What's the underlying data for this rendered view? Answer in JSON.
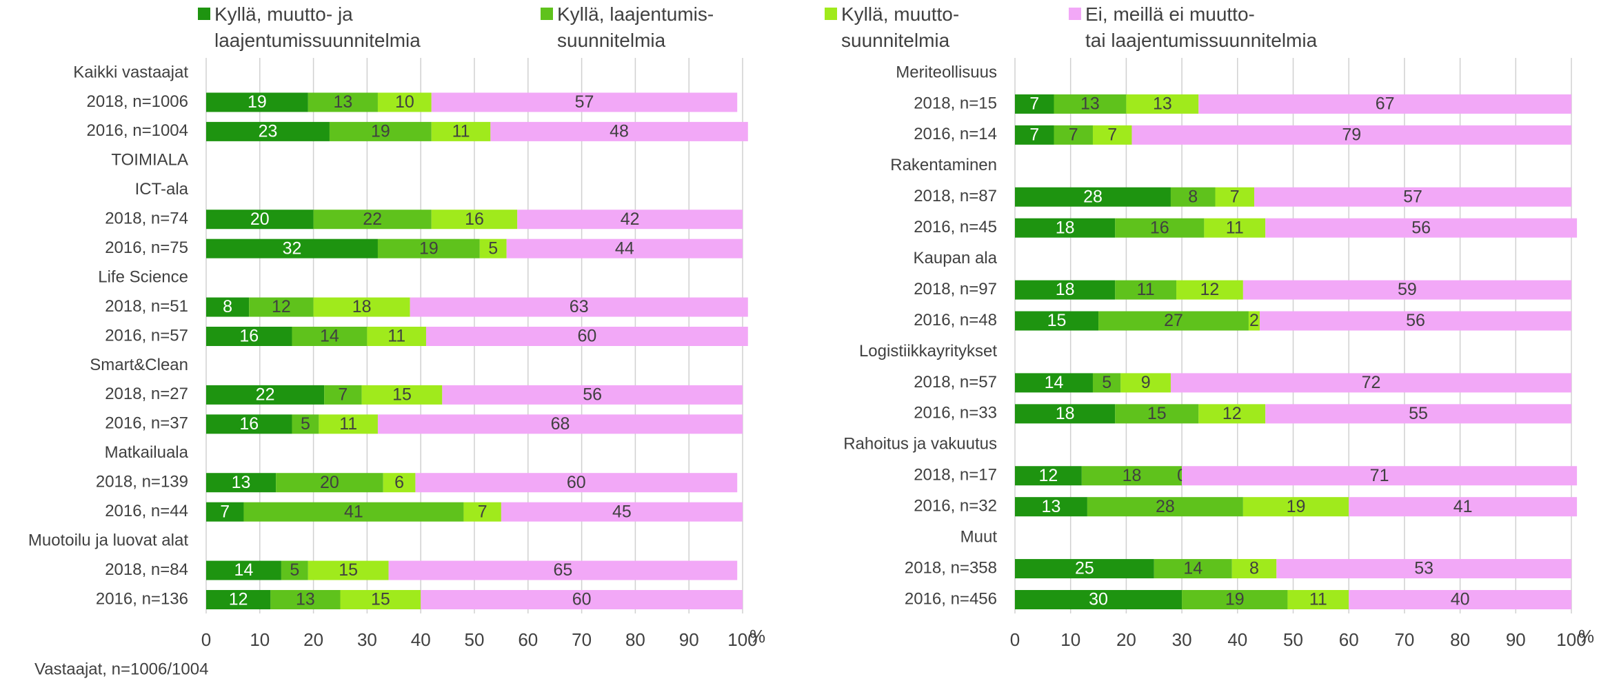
{
  "chart_data": [
    {
      "type": "stacked-bar-horizontal",
      "categories": [
        "Kaikki vastaajat",
        "2018, n=1006",
        "2016, n=1004",
        "TOIMIALA",
        "ICT-ala",
        "2018, n=74",
        "2016, n=75",
        "Life Science",
        "2018, n=51",
        "2016, n=57",
        "Smart&Clean",
        "2018, n=27",
        "2016, n=37",
        "Matkailuala",
        "2018, n=139",
        "2016, n=44",
        "Muotoilu ja luovat alat",
        "2018, n=84",
        "2016, n=136"
      ],
      "series": [
        {
          "name": "Kyllä, muutto- ja\nlaajentumissuunnitelmia",
          "color": "#1e9410",
          "values": [
            null,
            19,
            23,
            null,
            null,
            20,
            32,
            null,
            8,
            16,
            null,
            22,
            16,
            null,
            13,
            7,
            null,
            14,
            12
          ]
        },
        {
          "name": "Kyllä, laajentumis-\nsuunnitelmia",
          "color": "#5fc21c",
          "values": [
            null,
            13,
            19,
            null,
            null,
            22,
            19,
            null,
            12,
            14,
            null,
            7,
            5,
            null,
            20,
            41,
            null,
            5,
            13
          ]
        },
        {
          "name": "Kyllä, muutto-\nsuunnitelmia",
          "color": "#a0ea1c",
          "values": [
            null,
            10,
            11,
            null,
            null,
            16,
            5,
            null,
            18,
            11,
            null,
            15,
            11,
            null,
            6,
            7,
            null,
            15,
            15
          ]
        },
        {
          "name": "Ei, meillä ei muutto-\ntai laajentumissuunnitelmia",
          "color": "#f2a8f7",
          "values": [
            null,
            57,
            48,
            null,
            null,
            42,
            44,
            null,
            63,
            60,
            null,
            56,
            68,
            null,
            60,
            45,
            null,
            65,
            60
          ]
        }
      ],
      "xlim": [
        0,
        100
      ],
      "xticks": [
        0,
        10,
        20,
        30,
        40,
        50,
        60,
        70,
        80,
        90,
        100
      ],
      "xlabel": "%",
      "grid": true,
      "note": "Vastaajat, n=1006/1004"
    },
    {
      "type": "stacked-bar-horizontal",
      "categories": [
        "Meriteollisuus",
        "2018, n=15",
        "2016, n=14",
        "Rakentaminen",
        "2018, n=87",
        "2016, n=45",
        "Kaupan ala",
        "2018, n=97",
        "2016, n=48",
        "Logistiikkayritykset",
        "2018, n=57",
        "2016, n=33",
        "Rahoitus ja vakuutus",
        "2018, n=17",
        "2016, n=32",
        "Muut",
        "2018, n=358",
        "2016, n=456"
      ],
      "series": [
        {
          "color": "#1e9410",
          "values": [
            null,
            7,
            7,
            null,
            28,
            18,
            null,
            18,
            15,
            null,
            14,
            18,
            null,
            12,
            13,
            null,
            25,
            30
          ]
        },
        {
          "color": "#5fc21c",
          "values": [
            null,
            13,
            7,
            null,
            8,
            16,
            null,
            11,
            27,
            null,
            5,
            15,
            null,
            18,
            28,
            null,
            14,
            19
          ]
        },
        {
          "color": "#a0ea1c",
          "values": [
            null,
            13,
            7,
            null,
            7,
            11,
            null,
            12,
            2,
            null,
            9,
            12,
            null,
            0,
            19,
            null,
            8,
            11
          ]
        },
        {
          "color": "#f2a8f7",
          "values": [
            null,
            67,
            79,
            null,
            57,
            56,
            null,
            59,
            56,
            null,
            72,
            55,
            null,
            71,
            41,
            null,
            53,
            40
          ]
        }
      ],
      "xlim": [
        0,
        100
      ],
      "xticks": [
        0,
        10,
        20,
        30,
        40,
        50,
        60,
        70,
        80,
        90,
        100
      ],
      "xlabel": "%",
      "grid": true
    }
  ]
}
